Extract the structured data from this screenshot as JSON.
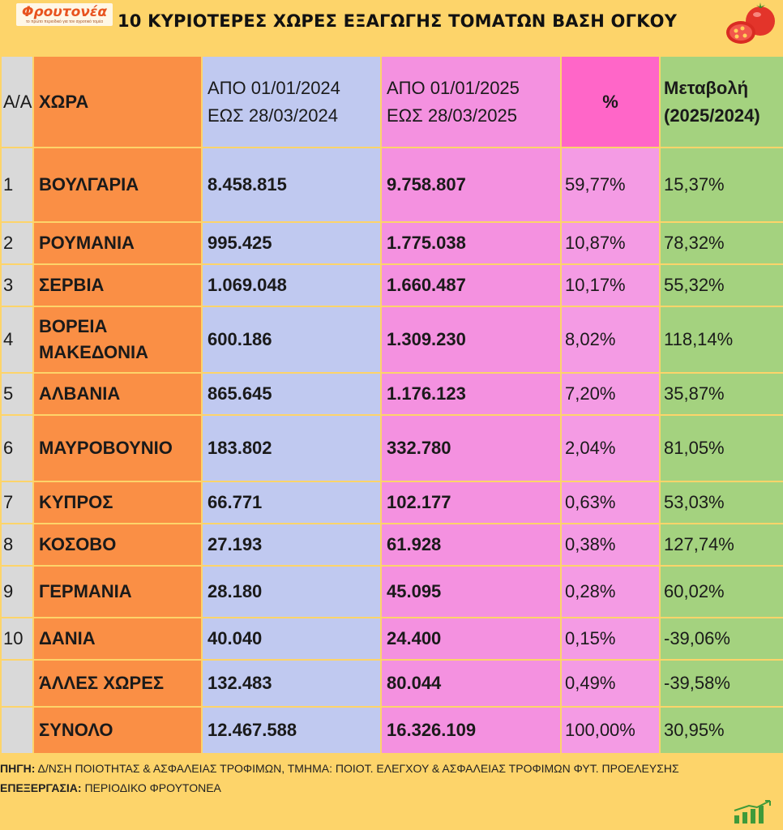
{
  "logo": {
    "name": "Φρουτονέα",
    "tagline": "το πρώτο περιοδικό για τον αγροτικό τομέα"
  },
  "title": "10 ΚΥΡΙΟΤΕΡΕΣ ΧΩΡΕΣ ΕΞΑΓΩΓΗΣ ΤΟΜΑΤΩΝ ΒΑΣΗ ΟΓΚΟΥ",
  "colors": {
    "background": "#fdd46a",
    "country": "#fa8f45",
    "y2024": "#c0c9f0",
    "y2025": "#f491e0",
    "share_header": "#ff66c8",
    "change": "#a4d27f",
    "index": "#d9d9d9"
  },
  "table": {
    "headers": {
      "index": "Α/Α",
      "country": "ΧΩΡΑ",
      "period_2024": "ΑΠΟ 01/01/2024 ΕΩΣ 28/03/2024",
      "period_2025": "ΑΠΟ 01/01/2025 ΕΩΣ 28/03/2025",
      "share": "%",
      "change": "Μεταβολή (2025/2024)"
    },
    "rows": [
      {
        "index": "1",
        "country": "ΒΟΥΛΓΑΡΙΑ",
        "v2024": "8.458.815",
        "v2025": "9.758.807",
        "share": "59,77%",
        "change": "15,37%"
      },
      {
        "index": "2",
        "country": "ΡΟΥΜΑΝΙΑ",
        "v2024": "995.425",
        "v2025": "1.775.038",
        "share": "10,87%",
        "change": "78,32%"
      },
      {
        "index": "3",
        "country": "ΣΕΡΒΙΑ",
        "v2024": "1.069.048",
        "v2025": "1.660.487",
        "share": "10,17%",
        "change": "55,32%"
      },
      {
        "index": "4",
        "country": "ΒΟΡΕΙΑ ΜΑΚΕΔΟΝΙΑ",
        "v2024": "600.186",
        "v2025": "1.309.230",
        "share": "8,02%",
        "change": "118,14%"
      },
      {
        "index": "5",
        "country": "ΑΛΒΑΝΙΑ",
        "v2024": "865.645",
        "v2025": "1.176.123",
        "share": "7,20%",
        "change": "35,87%"
      },
      {
        "index": "6",
        "country": "ΜΑΥΡΟΒΟΥΝΙΟ",
        "v2024": "183.802",
        "v2025": "332.780",
        "share": "2,04%",
        "change": "81,05%"
      },
      {
        "index": "7",
        "country": "ΚΥΠΡΟΣ",
        "v2024": "66.771",
        "v2025": "102.177",
        "share": "0,63%",
        "change": "53,03%"
      },
      {
        "index": "8",
        "country": "ΚΟΣΟΒΟ",
        "v2024": "27.193",
        "v2025": "61.928",
        "share": "0,38%",
        "change": "127,74%"
      },
      {
        "index": "9",
        "country": "ΓΕΡΜΑΝΙΑ",
        "v2024": "28.180",
        "v2025": "45.095",
        "share": "0,28%",
        "change": "60,02%"
      },
      {
        "index": "10",
        "country": "ΔΑΝΙΑ",
        "v2024": "40.040",
        "v2025": "24.400",
        "share": "0,15%",
        "change": "-39,06%"
      },
      {
        "index": "",
        "country": "ΆΛΛΕΣ ΧΩΡΕΣ",
        "v2024": "132.483",
        "v2025": "80.044",
        "share": "0,49%",
        "change": "-39,58%"
      },
      {
        "index": "",
        "country": "ΣΥΝΟΛΟ",
        "v2024": "12.467.588",
        "v2025": "16.326.109",
        "share": "100,00%",
        "change": "30,95%"
      }
    ]
  },
  "footer": {
    "source_label": "ΠΗΓΗ:",
    "source_text": "Δ/ΝΣΗ ΠΟΙΟΤΗΤΑΣ & ΑΣΦΑΛΕΙΑΣ ΤΡΟΦΙΜΩΝ, ΤΜΗΜΑ: ΠΟΙΟΤ. ΕΛΕΓΧΟΥ & ΑΣΦΑΛΕΙΑΣ ΤΡΟΦΙΜΩΝ ΦΥΤ. ΠΡΟΕΛΕΥΣΗΣ",
    "processing_label": "ΕΠΕΞΕΡΓΑΣΙΑ:",
    "processing_text": "ΠΕΡΙΟΔΙΚΟ ΦΡΟΥΤΟΝΕΑ"
  },
  "icons": {
    "logo": "logo-icon",
    "tomato": "tomato-icon",
    "growth": "bar-chart-growth-icon"
  }
}
